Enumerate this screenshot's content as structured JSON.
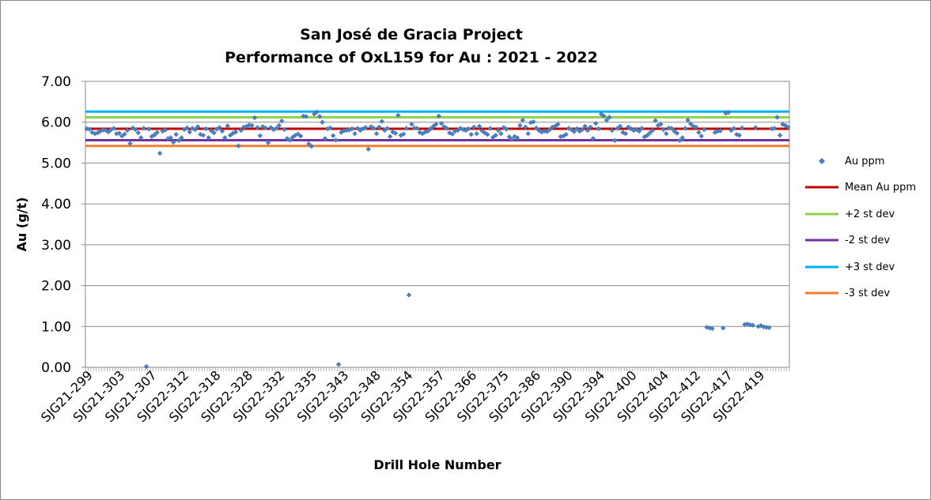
{
  "chart_data": {
    "type": "scatter",
    "title": "San José de Gracia Project",
    "subtitle": "Performance of OxL159 for Au : 2021 - 2022",
    "xlabel": "Drill Hole Number",
    "ylabel": "Au (g/t)",
    "ylim": [
      0,
      7
    ],
    "yticks": [
      "0.00",
      "1.00",
      "2.00",
      "3.00",
      "4.00",
      "5.00",
      "6.00",
      "7.00"
    ],
    "grid": "horizontal",
    "legend_position": "right",
    "x_tick_labels": [
      "SJG21-299",
      "SJG21-303",
      "SJG21-307",
      "SJG22-312",
      "SJG22-318",
      "SJG22-328",
      "SJG22-332",
      "SJG22-335",
      "SJG22-343",
      "SJG22-348",
      "SJG22-354",
      "SJG22-357",
      "SJG22-366",
      "SJG22-375",
      "SJG22-386",
      "SJG22-390",
      "SJG22-394",
      "SJG22-400",
      "SJG22-404",
      "SJG22-412",
      "SJG22-417",
      "SJG22-419"
    ],
    "series": [
      {
        "name": "Au ppm",
        "marker": "diamond",
        "color": "#4a7ebb",
        "values": [
          5.84,
          5.83,
          5.75,
          5.72,
          5.74,
          5.78,
          5.81,
          5.8,
          5.76,
          5.82,
          5.85,
          5.72,
          5.73,
          5.66,
          5.71,
          5.8,
          5.48,
          5.86,
          5.82,
          5.74,
          5.62,
          5.85,
          0.02,
          5.83,
          5.65,
          5.69,
          5.75,
          5.24,
          5.78,
          5.81,
          5.6,
          5.62,
          5.51,
          5.7,
          5.55,
          5.62,
          5.82,
          5.86,
          5.76,
          5.85,
          5.82,
          5.89,
          5.7,
          5.68,
          5.84,
          5.62,
          5.79,
          5.74,
          5.83,
          5.87,
          5.78,
          5.62,
          5.91,
          5.68,
          5.73,
          5.76,
          5.42,
          5.8,
          5.88,
          5.9,
          5.93,
          5.92,
          6.11,
          5.87,
          5.67,
          5.89,
          5.86,
          5.5,
          5.87,
          5.82,
          5.85,
          5.92,
          6.03,
          5.82,
          5.6,
          5.56,
          5.63,
          5.68,
          5.71,
          5.66,
          6.15,
          6.14,
          5.47,
          5.41,
          6.2,
          6.25,
          6.14,
          6.0,
          5.6,
          5.84,
          5.86,
          5.67,
          5.56,
          0.07,
          5.75,
          5.79,
          5.8,
          5.81,
          5.84,
          5.72,
          5.85,
          5.8,
          5.84,
          5.87,
          5.34,
          5.89,
          5.85,
          5.72,
          5.88,
          6.02,
          5.8,
          5.85,
          5.65,
          5.76,
          5.73,
          6.17,
          5.68,
          5.71,
          5.85,
          1.77,
          5.95,
          5.86,
          5.85,
          5.75,
          5.72,
          5.76,
          5.78,
          5.84,
          5.9,
          5.95,
          6.15,
          5.97,
          5.89,
          5.85,
          5.74,
          5.71,
          5.78,
          5.8,
          5.85,
          5.82,
          5.8,
          5.84,
          5.7,
          5.88,
          5.72,
          5.9,
          5.79,
          5.74,
          5.7,
          5.85,
          5.63,
          5.68,
          5.8,
          5.72,
          5.87,
          5.83,
          5.64,
          5.58,
          5.65,
          5.62,
          5.92,
          6.05,
          5.88,
          5.72,
          5.99,
          6.01,
          5.86,
          5.8,
          5.76,
          5.78,
          5.77,
          5.82,
          5.88,
          5.9,
          5.95,
          5.65,
          5.66,
          5.7,
          5.85,
          5.82,
          5.77,
          5.84,
          5.78,
          5.82,
          5.9,
          5.8,
          5.88,
          5.6,
          5.97,
          5.84,
          6.2,
          6.15,
          6.05,
          6.12,
          5.8,
          5.55,
          5.85,
          5.9,
          5.75,
          5.72,
          5.88,
          5.84,
          5.8,
          5.82,
          5.78,
          5.85,
          5.64,
          5.68,
          5.74,
          5.8,
          6.04,
          5.92,
          5.95,
          5.82,
          5.72,
          5.86,
          5.85,
          5.78,
          5.73,
          5.55,
          5.62,
          5.85,
          6.05,
          5.96,
          5.9,
          5.88,
          5.75,
          5.66,
          5.82,
          0.98,
          0.96,
          0.95,
          5.75,
          5.78,
          5.79,
          0.96,
          6.22,
          6.24,
          5.8,
          5.85,
          5.7,
          5.68,
          5.86,
          1.05,
          1.06,
          1.04,
          1.03,
          5.87,
          1.0,
          1.02,
          0.99,
          0.98,
          0.97,
          5.84,
          5.85,
          6.12,
          5.68,
          5.95,
          5.92,
          5.88
        ]
      },
      {
        "name": "Mean Au ppm",
        "type": "line",
        "color": "#c00000",
        "value": 5.84
      },
      {
        "name": "+2 st dev",
        "type": "line",
        "color": "#92d050",
        "value": 6.12
      },
      {
        "name": "-2 st dev",
        "type": "line",
        "color": "#7030a0",
        "value": 5.56
      },
      {
        "name": "+3 st dev",
        "type": "line",
        "color": "#00b0f0",
        "value": 6.26
      },
      {
        "name": "-3 st dev",
        "type": "line",
        "color": "#f07f30",
        "value": 5.42
      }
    ]
  }
}
